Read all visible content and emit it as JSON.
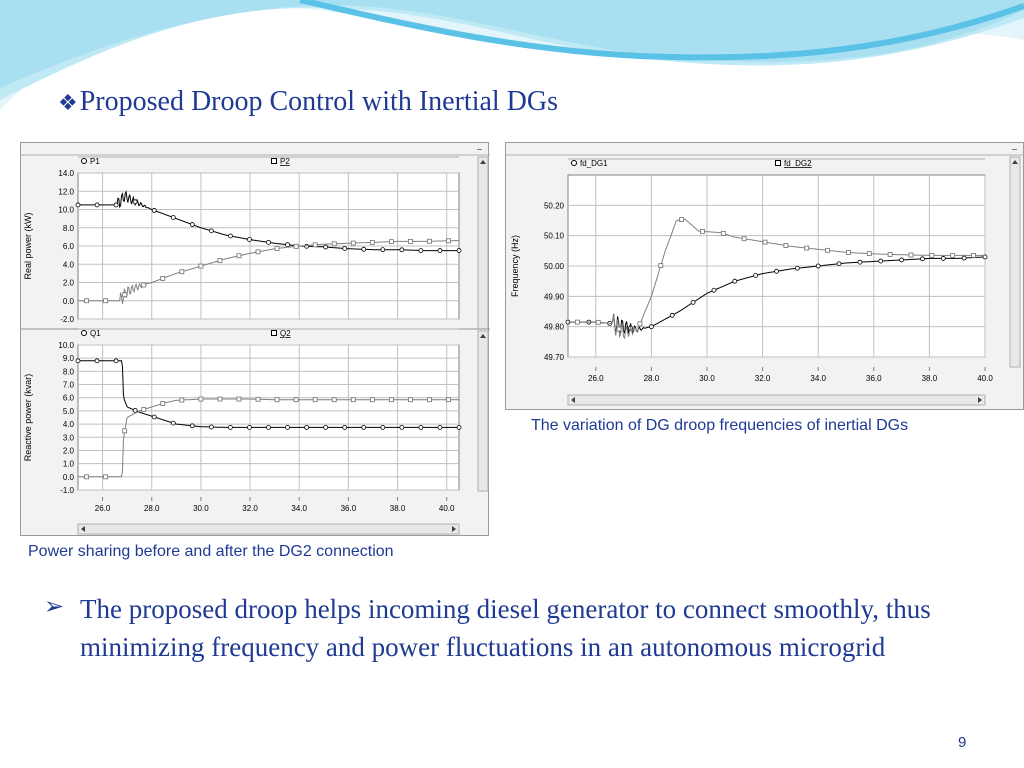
{
  "slide": {
    "title_bullet": "❖",
    "title": "Proposed Droop Control with Inertial DGs",
    "caption_left": "Power sharing before and after the DG2 connection",
    "caption_right": "The variation of DG droop frequencies of inertial DGs",
    "bullet_marker": "➢",
    "body": "The proposed droop helps incoming diesel generator to connect smoothly, thus minimizing frequency and power fluctuations in an autonomous microgrid",
    "page_number": "9"
  },
  "colors": {
    "text_blue": "#1f3a93",
    "wave_light": "#bfe9f4",
    "wave_dark": "#5bc2e7",
    "series_black": "#000000",
    "series_grey": "#808080",
    "grid": "#c0c0c0"
  },
  "chart_data": [
    {
      "type": "line",
      "title": "",
      "xlabel": "",
      "ylabel": "Real power (kW)",
      "xlim": [
        25.0,
        40.5
      ],
      "ylim": [
        -2.0,
        14.0
      ],
      "yticks": [
        "14.0",
        "12.0",
        "10.0",
        "8.0",
        "6.0",
        "4.0",
        "2.0",
        "0.0",
        "-2.0"
      ],
      "legend": [
        "P1",
        "P2"
      ],
      "series": [
        {
          "name": "P1",
          "marker": "circle",
          "color": "#000000",
          "x": [
            25.0,
            26.0,
            26.6,
            26.9,
            27.2,
            27.6,
            28.0,
            28.5,
            29.0,
            30.0,
            31.0,
            32.0,
            33.0,
            34.0,
            35.0,
            36.0,
            37.0,
            38.0,
            39.0,
            40.5
          ],
          "y": [
            10.5,
            10.5,
            10.5,
            11.5,
            11.0,
            10.5,
            10.0,
            9.5,
            9.0,
            8.0,
            7.2,
            6.7,
            6.3,
            6.0,
            5.9,
            5.7,
            5.6,
            5.6,
            5.5,
            5.5
          ],
          "osc": {
            "start": 26.6,
            "end": 27.9,
            "amp": 0.8
          }
        },
        {
          "name": "P2",
          "marker": "square",
          "color": "#808080",
          "x": [
            25.0,
            26.0,
            26.7,
            27.0,
            27.4,
            28.0,
            28.5,
            29.0,
            30.0,
            31.0,
            32.0,
            33.0,
            34.0,
            35.0,
            36.0,
            37.0,
            38.0,
            39.0,
            40.5
          ],
          "y": [
            0.0,
            0.0,
            0.0,
            1.0,
            1.5,
            2.0,
            2.5,
            3.0,
            3.8,
            4.6,
            5.2,
            5.7,
            6.0,
            6.2,
            6.3,
            6.4,
            6.5,
            6.5,
            6.6
          ],
          "osc": {
            "start": 26.7,
            "end": 27.9,
            "amp": 0.8
          }
        }
      ]
    },
    {
      "type": "line",
      "title": "",
      "xlabel": "",
      "ylabel": "Reactive power (kvar)",
      "xlim": [
        25.0,
        40.5
      ],
      "ylim": [
        -1.0,
        10.0
      ],
      "xticks": [
        "26.0",
        "28.0",
        "30.0",
        "32.0",
        "34.0",
        "36.0",
        "38.0",
        "40.0"
      ],
      "yticks": [
        "10.0",
        "9.0",
        "8.0",
        "7.0",
        "6.0",
        "5.0",
        "4.0",
        "3.0",
        "2.0",
        "1.0",
        "0.0",
        "-1.0"
      ],
      "legend": [
        "Q1",
        "Q2"
      ],
      "series": [
        {
          "name": "Q1",
          "marker": "circle",
          "color": "#000000",
          "x": [
            25.0,
            26.0,
            26.8,
            26.85,
            27.0,
            27.5,
            28.0,
            28.5,
            29.0,
            30.0,
            31.0,
            32.0,
            33.0,
            34.0,
            35.0,
            36.0,
            37.0,
            38.0,
            39.0,
            40.5
          ],
          "y": [
            8.8,
            8.8,
            8.8,
            6.0,
            5.3,
            4.9,
            4.6,
            4.3,
            4.0,
            3.8,
            3.75,
            3.75,
            3.75,
            3.75,
            3.75,
            3.75,
            3.75,
            3.75,
            3.75,
            3.75
          ],
          "osc": null
        },
        {
          "name": "Q2",
          "marker": "square",
          "color": "#808080",
          "x": [
            25.0,
            26.0,
            26.8,
            26.85,
            27.0,
            27.5,
            28.0,
            28.5,
            29.0,
            30.0,
            31.0,
            32.0,
            33.0,
            34.0,
            35.0,
            36.0,
            37.0,
            38.0,
            39.0,
            40.5
          ],
          "y": [
            0.0,
            0.0,
            0.0,
            3.0,
            4.5,
            5.0,
            5.3,
            5.6,
            5.8,
            5.9,
            5.9,
            5.9,
            5.85,
            5.85,
            5.85,
            5.85,
            5.85,
            5.85,
            5.85,
            5.85
          ],
          "osc": null
        }
      ]
    },
    {
      "type": "line",
      "title": "",
      "xlabel": "",
      "ylabel": "Frequency (Hz)",
      "xlim": [
        25.0,
        40.0
      ],
      "ylim": [
        49.7,
        50.3
      ],
      "xticks": [
        "26.0",
        "28.0",
        "30.0",
        "32.0",
        "34.0",
        "36.0",
        "38.0",
        "40.0"
      ],
      "yticks": [
        "50.20",
        "50.10",
        "50.00",
        "49.90",
        "49.80",
        "49.70"
      ],
      "legend": [
        "fd_DG1",
        "fd_DG2"
      ],
      "series": [
        {
          "name": "fd_DG1",
          "marker": "circle",
          "color": "#000000",
          "x": [
            25.0,
            26.0,
            26.6,
            27.0,
            27.5,
            28.0,
            29.0,
            30.0,
            31.0,
            32.0,
            33.0,
            34.0,
            35.0,
            36.0,
            37.0,
            38.0,
            39.0,
            40.0
          ],
          "y": [
            49.815,
            49.815,
            49.81,
            49.8,
            49.79,
            49.8,
            49.85,
            49.91,
            49.95,
            49.975,
            49.99,
            50.0,
            50.01,
            50.015,
            50.02,
            50.025,
            50.025,
            50.03
          ],
          "osc": {
            "start": 26.6,
            "end": 27.8,
            "amp": 0.035
          }
        },
        {
          "name": "fd_DG2",
          "marker": "square",
          "color": "#808080",
          "x": [
            25.0,
            26.0,
            26.6,
            27.0,
            27.5,
            28.0,
            28.5,
            28.9,
            29.2,
            29.7,
            30.5,
            31.0,
            32.0,
            33.0,
            34.0,
            35.0,
            36.0,
            37.0,
            38.0,
            39.0,
            40.0
          ],
          "y": [
            49.815,
            49.815,
            49.81,
            49.78,
            49.79,
            49.9,
            50.05,
            50.15,
            50.155,
            50.115,
            50.11,
            50.095,
            50.08,
            50.065,
            50.055,
            50.045,
            50.04,
            50.037,
            50.035,
            50.035,
            50.035
          ],
          "osc": {
            "start": 26.6,
            "end": 27.7,
            "amp": 0.035
          }
        }
      ]
    }
  ]
}
